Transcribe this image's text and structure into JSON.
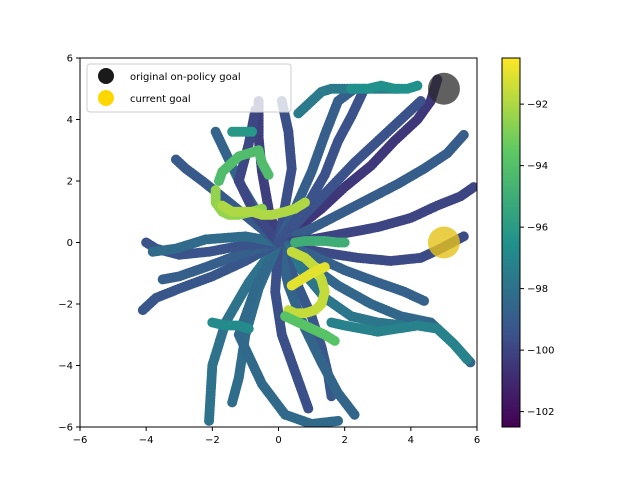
{
  "chart_data": {
    "type": "scatter",
    "xlim": [
      -6,
      6
    ],
    "ylim": [
      -6,
      6
    ],
    "xticks": [
      -6,
      -4,
      -2,
      0,
      2,
      4,
      6
    ],
    "yticks": [
      -6,
      -4,
      -2,
      0,
      2,
      4,
      6
    ],
    "grid": false,
    "legend": {
      "placement": "top-left",
      "entries": [
        {
          "label": "original on-policy goal",
          "color": "#1a1a1a"
        },
        {
          "label": "current goal",
          "color": "#ffd700"
        }
      ]
    },
    "markers": [
      {
        "name": "original on-policy goal",
        "x": 5.0,
        "y": 5.0,
        "color": "#2b2b2b",
        "opacity": 0.75
      },
      {
        "name": "current goal",
        "x": 5.0,
        "y": 0.0,
        "color": "#e6c21a",
        "opacity": 0.8
      }
    ],
    "colorbar": {
      "colormap": "viridis",
      "vmin": -102.5,
      "vmax": -90.5,
      "ticks": [
        -92,
        -94,
        -96,
        -98,
        -100,
        -102
      ]
    },
    "trajectories": [
      {
        "x": [
          0,
          0.6,
          1.3,
          2.0,
          2.8,
          3.5,
          4.2,
          4.6,
          4.8
        ],
        "y": [
          0,
          0.5,
          1.1,
          1.8,
          2.5,
          3.3,
          4.0,
          4.6,
          5.3
        ],
        "value": -100.5
      },
      {
        "x": [
          0,
          0.7,
          1.5,
          2.3,
          3.1,
          3.8,
          4.3
        ],
        "y": [
          0,
          0.8,
          1.7,
          2.6,
          3.4,
          4.1,
          4.6
        ],
        "value": -99.5
      },
      {
        "x": [
          0,
          0.9,
          1.8,
          2.7,
          3.6,
          4.4,
          5.1,
          5.6
        ],
        "y": [
          0,
          0.4,
          0.9,
          1.4,
          1.9,
          2.4,
          2.9,
          3.5
        ],
        "value": -99.0
      },
      {
        "x": [
          0,
          1.0,
          2.0,
          3.0,
          4.0,
          4.8,
          5.5,
          5.9
        ],
        "y": [
          0,
          0.1,
          0.3,
          0.5,
          0.8,
          1.2,
          1.5,
          1.8
        ],
        "value": -100.0
      },
      {
        "x": [
          0,
          1.2,
          2.4,
          3.4,
          4.3,
          4.9,
          5.6
        ],
        "y": [
          0,
          -0.3,
          -0.5,
          -0.6,
          -0.5,
          -0.2,
          0.2
        ],
        "value": -99.8
      },
      {
        "x": [
          0,
          1.0,
          2.0,
          3.0,
          3.8,
          4.4
        ],
        "y": [
          0,
          -0.4,
          -0.9,
          -1.3,
          -1.6,
          -1.9
        ],
        "value": -98.8
      },
      {
        "x": [
          0,
          0.9,
          1.8,
          2.8,
          3.7,
          4.6,
          5.3,
          5.8
        ],
        "y": [
          0,
          -0.7,
          -1.4,
          -2.0,
          -2.4,
          -2.6,
          -3.3,
          -3.9
        ],
        "value": -98.5
      },
      {
        "x": [
          0,
          0.7,
          1.4,
          2.2,
          3.0,
          3.8
        ],
        "y": [
          0,
          -0.9,
          -1.8,
          -2.4,
          -2.6,
          -2.7
        ],
        "value": -97.8
      },
      {
        "x": [
          0,
          0.5,
          1.0,
          1.3,
          1.5,
          1.6
        ],
        "y": [
          0,
          -1.2,
          -2.4,
          -3.4,
          -4.3,
          -5.0
        ],
        "value": -99.2
      },
      {
        "x": [
          0,
          0.3,
          0.8,
          1.3,
          1.8,
          2.3
        ],
        "y": [
          0,
          -1.4,
          -2.8,
          -3.9,
          -4.9,
          -5.6
        ],
        "value": -98.6
      },
      {
        "x": [
          0,
          -0.1,
          0.1,
          0.5,
          0.9
        ],
        "y": [
          0,
          -1.6,
          -3.0,
          -4.2,
          -5.4
        ],
        "value": -99.6
      },
      {
        "x": [
          0,
          -0.6,
          -1.0,
          -1.2,
          -1.4
        ],
        "y": [
          0,
          -1.5,
          -3.0,
          -4.4,
          -5.2
        ],
        "value": -98.2
      },
      {
        "x": [
          0,
          -0.9,
          -1.6,
          -2.0,
          -2.1
        ],
        "y": [
          0,
          -1.3,
          -2.6,
          -4.0,
          -5.8
        ],
        "value": -98.0
      },
      {
        "x": [
          0,
          -0.7,
          -1.2,
          -0.5,
          0.2,
          1.0,
          1.8
        ],
        "y": [
          0,
          -1.5,
          -3.0,
          -4.6,
          -5.6,
          -5.9,
          -5.8
        ],
        "value": -98.4
      },
      {
        "x": [
          0,
          -1.0,
          -2.0,
          -3.0,
          -3.7,
          -4.1
        ],
        "y": [
          0,
          -0.6,
          -1.1,
          -1.5,
          -1.8,
          -2.2
        ],
        "value": -99.3
      },
      {
        "x": [
          0,
          -1.2,
          -2.2,
          -3.0,
          -3.5
        ],
        "y": [
          0,
          -0.4,
          -0.8,
          -1.1,
          -1.2
        ],
        "value": -98.9
      },
      {
        "x": [
          0,
          -1.1,
          -2.1,
          -3.0,
          -3.7,
          -4.0
        ],
        "y": [
          0,
          -0.1,
          -0.3,
          -0.4,
          -0.2,
          0.0
        ],
        "value": -99.4
      },
      {
        "x": [
          0,
          -1.0,
          -2.2,
          -3.1,
          -3.8
        ],
        "y": [
          0,
          0.2,
          0.1,
          -0.2,
          -0.3
        ],
        "value": -98.3
      },
      {
        "x": [
          0,
          -0.8,
          -1.6,
          -2.3,
          -2.8,
          -3.1
        ],
        "y": [
          0,
          0.7,
          1.4,
          2.0,
          2.4,
          2.7
        ],
        "value": -99.1
      },
      {
        "x": [
          0,
          -0.6,
          -1.1,
          -1.5,
          -1.9
        ],
        "y": [
          0,
          0.9,
          1.8,
          2.7,
          3.6
        ],
        "value": -98.7
      },
      {
        "x": [
          0,
          -0.3,
          -0.5,
          -0.6,
          -0.6
        ],
        "y": [
          0,
          1.1,
          2.3,
          3.4,
          4.6
        ],
        "value": -100.2
      },
      {
        "x": [
          0,
          -0.7,
          -1.2,
          -0.9,
          -0.7
        ],
        "y": [
          0,
          0.9,
          2.0,
          3.2,
          4.3
        ],
        "value": -99.9
      },
      {
        "x": [
          0,
          0.2,
          0.4,
          0.3,
          0.1
        ],
        "y": [
          0,
          1.2,
          2.4,
          3.6,
          4.6
        ],
        "value": -99.6
      },
      {
        "x": [
          0,
          0.5,
          1.0,
          1.4,
          1.8,
          2.3
        ],
        "y": [
          0,
          1.1,
          2.3,
          3.5,
          4.6,
          5.0
        ],
        "value": -98.9
      },
      {
        "x": [
          0.6,
          1.0,
          1.3,
          1.6,
          2.0,
          2.5,
          3.0,
          3.6
        ],
        "y": [
          4.2,
          4.6,
          4.9,
          5.0,
          5.0,
          5.0,
          5.0,
          5.0
        ],
        "value": -97.6
      },
      {
        "x": [
          0,
          0.8,
          1.4,
          1.8,
          2.2,
          2.6
        ],
        "y": [
          0,
          1.1,
          2.2,
          3.3,
          4.1,
          5.0
        ],
        "value": -99.5
      },
      {
        "x": [
          -1.8,
          -1.7,
          -1.4,
          -1.2,
          -0.6,
          -0.5,
          -0.3
        ],
        "y": [
          2.0,
          2.3,
          2.6,
          2.8,
          3.0,
          2.6,
          2.2
        ],
        "value": -94.2
      },
      {
        "x": [
          -1.9,
          -1.9,
          -1.7,
          -1.5,
          -1.2,
          -0.8,
          -0.5
        ],
        "y": [
          1.7,
          1.3,
          1.0,
          0.9,
          0.9,
          1.0,
          1.1
        ],
        "value": -92.5
      },
      {
        "x": [
          -1.7,
          -1.4,
          -1.1,
          -0.8,
          -0.5,
          -0.2,
          0.2,
          0.5,
          0.8
        ],
        "y": [
          1.2,
          1.0,
          1.0,
          1.0,
          0.9,
          0.9,
          1.0,
          1.1,
          1.3
        ],
        "value": -92.0
      },
      {
        "x": [
          0.3,
          0.5,
          0.8,
          1.1,
          1.3,
          1.4,
          1.3,
          1.1,
          0.8,
          0.4
        ],
        "y": [
          -2.2,
          -2.3,
          -2.3,
          -2.2,
          -2.0,
          -1.6,
          -1.2,
          -0.8,
          -0.5,
          -0.3
        ],
        "value": -91.6
      },
      {
        "x": [
          0.4,
          0.7,
          1.0,
          1.2,
          1.4
        ],
        "y": [
          -1.4,
          -1.2,
          -1.0,
          -0.9,
          -0.8
        ],
        "value": -91.0
      },
      {
        "x": [
          0.5,
          0.8,
          1.1,
          1.4,
          1.8,
          2.0
        ],
        "y": [
          0,
          0.05,
          0.05,
          0.05,
          0.0,
          0.0
        ],
        "value": -95.0
      },
      {
        "x": [
          0.2,
          0.6,
          1.0,
          1.4,
          1.7
        ],
        "y": [
          -2.4,
          -2.6,
          -2.8,
          -3.0,
          -3.2
        ],
        "value": -93.8
      },
      {
        "x": [
          -1.4,
          -1.1,
          -0.8
        ],
        "y": [
          3.6,
          3.6,
          3.6
        ],
        "value": -96.2
      },
      {
        "x": [
          -2.0,
          -1.6,
          -1.2,
          -0.9
        ],
        "y": [
          -2.6,
          -2.7,
          -2.7,
          -2.8
        ],
        "value": -96.8
      },
      {
        "x": [
          1.6,
          2.0,
          2.5,
          3.0,
          3.6,
          4.2,
          4.8,
          5.3,
          5.7
        ],
        "y": [
          -2.6,
          -2.7,
          -2.8,
          -2.9,
          -2.8,
          -2.7,
          -2.8,
          -3.3,
          -3.8
        ],
        "value": -97.2
      },
      {
        "x": [
          2.2,
          2.7,
          3.1,
          3.5,
          3.9,
          4.2
        ],
        "y": [
          5.0,
          5.0,
          5.1,
          5.0,
          5.0,
          5.1
        ],
        "value": -96.5
      }
    ]
  }
}
